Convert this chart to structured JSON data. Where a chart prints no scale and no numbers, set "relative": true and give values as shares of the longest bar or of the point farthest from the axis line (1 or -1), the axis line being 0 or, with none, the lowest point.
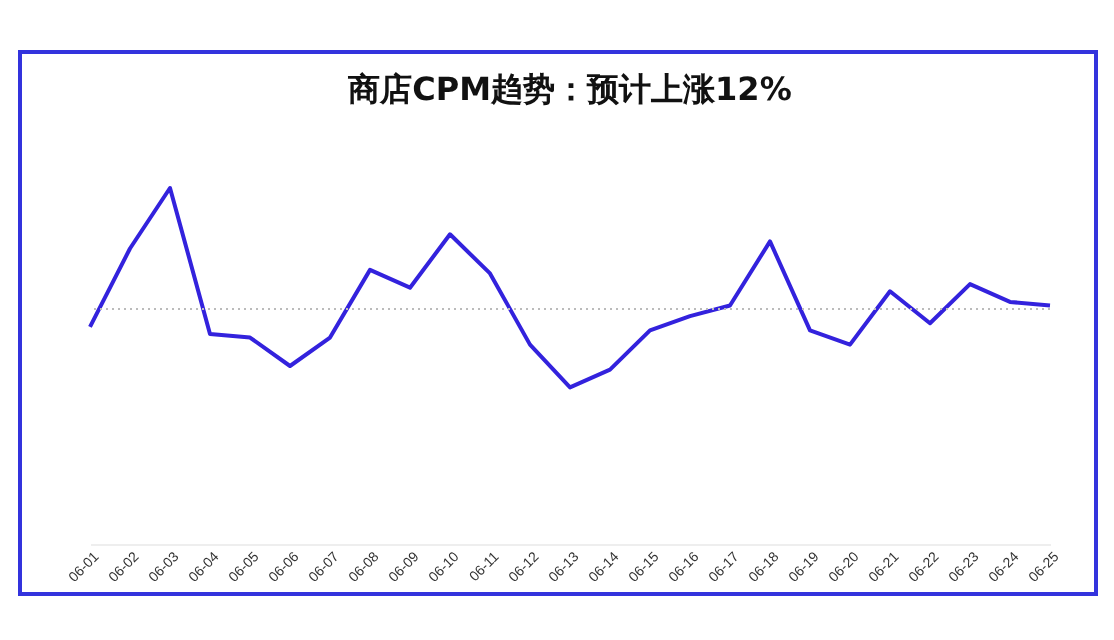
{
  "chart_data": {
    "type": "line",
    "title": "商店CPM趋势：预计上涨12%",
    "relative": true,
    "categories": [
      "06-01",
      "06-02",
      "06-03",
      "06-04",
      "06-05",
      "06-06",
      "06-07",
      "06-08",
      "06-09",
      "06-10",
      "06-11",
      "06-12",
      "06-13",
      "06-14",
      "06-15",
      "06-16",
      "06-17",
      "06-18",
      "06-19",
      "06-20",
      "06-21",
      "06-22",
      "06-23",
      "06-24",
      "06-25"
    ],
    "series": [
      {
        "color": "#3322dd",
        "values": [
          0.61,
          0.83,
          1,
          0.59,
          0.58,
          0.5,
          0.58,
          0.77,
          0.72,
          0.87,
          0.76,
          0.56,
          0.44,
          0.49,
          0.6,
          0.64,
          0.67,
          0.85,
          0.6,
          0.56,
          0.71,
          0.62,
          0.73,
          0.68,
          0.67
        ]
      }
    ],
    "ref_lines": [
      {
        "axis": "y",
        "value": 0.66,
        "color": "#bbbbbb",
        "line_style": "dotted"
      }
    ]
  }
}
